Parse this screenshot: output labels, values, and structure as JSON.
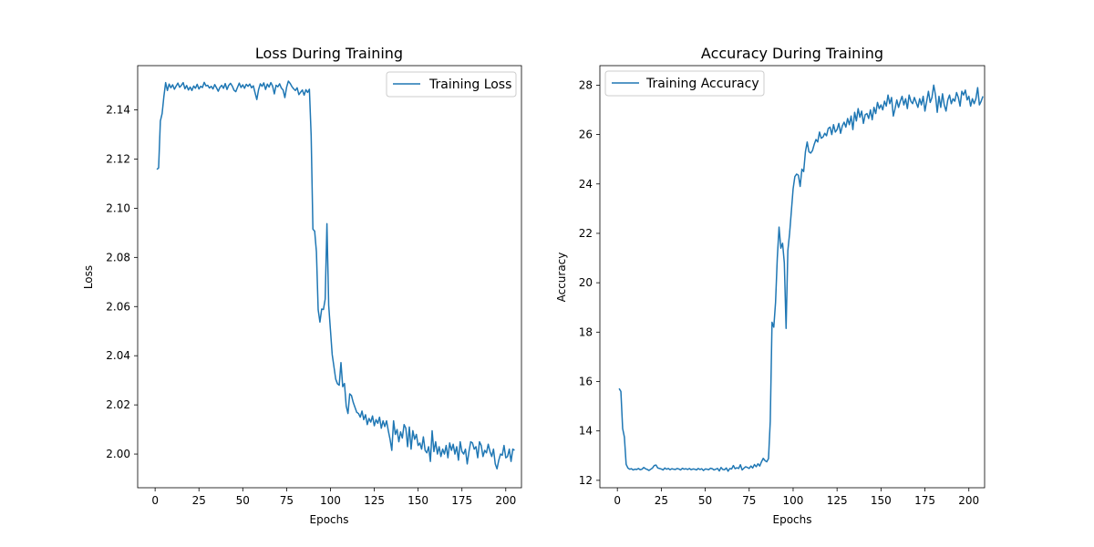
{
  "chart_data": [
    {
      "type": "line",
      "title": "Loss During Training",
      "xlabel": "Epochs",
      "ylabel": "Loss",
      "xlim": [
        -9.95,
        208.95
      ],
      "ylim": [
        1.9863,
        2.158
      ],
      "xticks": [
        0,
        25,
        50,
        75,
        100,
        125,
        150,
        175,
        200
      ],
      "yticks": [
        2.0,
        2.02,
        2.04,
        2.06,
        2.08,
        2.1,
        2.12,
        2.14
      ],
      "xtick_labels": [
        "0",
        "25",
        "50",
        "75",
        "100",
        "125",
        "150",
        "175",
        "200"
      ],
      "ytick_labels": [
        "2.00",
        "2.02",
        "2.04",
        "2.06",
        "2.08",
        "2.10",
        "2.12",
        "2.14"
      ],
      "legend_position": "upper-right",
      "color": "#1f77b4",
      "series": [
        {
          "name": "Training Loss",
          "x_start": 1,
          "values": [
            2.1158,
            2.1164,
            2.1355,
            2.1385,
            2.1454,
            2.1511,
            2.1479,
            2.1505,
            2.149,
            2.1502,
            2.1484,
            2.1497,
            2.1509,
            2.1492,
            2.15,
            2.1511,
            2.1486,
            2.1499,
            2.1481,
            2.1493,
            2.1479,
            2.1497,
            2.1488,
            2.1504,
            2.1485,
            2.1496,
            2.1491,
            2.1512,
            2.1498,
            2.15,
            2.1489,
            2.1496,
            2.1485,
            2.1503,
            2.149,
            2.1476,
            2.1492,
            2.15,
            2.1488,
            2.1507,
            2.1483,
            2.15,
            2.1508,
            2.1497,
            2.148,
            2.1474,
            2.1492,
            2.1509,
            2.1491,
            2.1502,
            2.1488,
            2.1504,
            2.1496,
            2.1505,
            2.149,
            2.1498,
            2.147,
            2.1442,
            2.1482,
            2.1506,
            2.1496,
            2.151,
            2.1483,
            2.1505,
            2.1493,
            2.1511,
            2.1497,
            2.1465,
            2.15,
            2.1494,
            2.1506,
            2.1489,
            2.1481,
            2.145,
            2.1492,
            2.1517,
            2.1508,
            2.1495,
            2.1486,
            2.1479,
            2.149,
            2.1462,
            2.1472,
            2.1481,
            2.146,
            2.1482,
            2.1471,
            2.1484,
            2.1295,
            2.0915,
            2.0907,
            2.0823,
            2.0587,
            2.0537,
            2.059,
            2.0588,
            2.063,
            2.0937,
            2.0605,
            2.0505,
            2.0405,
            2.0355,
            2.0305,
            2.0286,
            2.028,
            2.0372,
            2.0274,
            2.0287,
            2.0195,
            2.0165,
            2.0245,
            2.0238,
            2.021,
            2.019,
            2.017,
            2.0165,
            2.015,
            2.0175,
            2.014,
            2.016,
            2.012,
            2.0145,
            2.013,
            2.0155,
            2.0115,
            2.014,
            2.0125,
            2.015,
            2.0105,
            2.0135,
            2.0112,
            2.0135,
            2.0095,
            2.006,
            2.0015,
            2.0135,
            2.008,
            2.01,
            2.005,
            2.009,
            2.0065,
            2.012,
            2.0105,
            2.003,
            2.011,
            2.002,
            2.0095,
            2.006,
            2.008,
            2.0035,
            2.0045,
            2.002,
            2.007,
            2.0015,
            2.0005,
            2.003,
            1.997,
            2.0095,
            2.001,
            2.005,
            2.0,
            2.003,
            1.999,
            2.002,
            2.0,
            2.0035,
            1.9985,
            2.0045,
            2.0015,
            2.004,
            2.0,
            2.003,
            1.9975,
            2.005,
            2.001,
            2.0,
            2.002,
            1.996,
            2.001,
            2.005,
            2.0045,
            2.002,
            2.003,
            1.9985,
            2.005,
            2.0035,
            1.999,
            2.0015,
            2.0005,
            2.004,
            2.001,
            1.999,
            2.002,
            1.996,
            1.994,
            1.9975,
            2.0,
            1.9995,
            2.0035,
            1.9985,
            1.999,
            2.002,
            1.997,
            2.002,
            2.0015
          ]
        }
      ]
    },
    {
      "type": "line",
      "title": "Accuracy During Training",
      "xlabel": "Epochs",
      "ylabel": "Accuracy",
      "xlim": [
        -9.95,
        208.95
      ],
      "ylim": [
        11.7,
        28.79
      ],
      "xticks": [
        0,
        25,
        50,
        75,
        100,
        125,
        150,
        175,
        200
      ],
      "yticks": [
        12,
        14,
        16,
        18,
        20,
        22,
        24,
        26,
        28
      ],
      "xtick_labels": [
        "0",
        "25",
        "50",
        "75",
        "100",
        "125",
        "150",
        "175",
        "200"
      ],
      "ytick_labels": [
        "12",
        "14",
        "16",
        "18",
        "20",
        "22",
        "24",
        "26",
        "28"
      ],
      "legend_position": "upper-left",
      "color": "#1f77b4",
      "series": [
        {
          "name": "Training Accuracy",
          "x_start": 1,
          "values": [
            15.72,
            15.6,
            14.1,
            13.75,
            12.65,
            12.5,
            12.45,
            12.47,
            12.42,
            12.45,
            12.44,
            12.48,
            12.43,
            12.45,
            12.52,
            12.47,
            12.44,
            12.4,
            12.45,
            12.5,
            12.6,
            12.62,
            12.5,
            12.48,
            12.46,
            12.42,
            12.5,
            12.45,
            12.48,
            12.43,
            12.47,
            12.45,
            12.44,
            12.48,
            12.46,
            12.42,
            12.49,
            12.45,
            12.47,
            12.44,
            12.48,
            12.43,
            12.46,
            12.45,
            12.42,
            12.48,
            12.44,
            12.47,
            12.4,
            12.46,
            12.45,
            12.43,
            12.49,
            12.47,
            12.42,
            12.45,
            12.48,
            12.38,
            12.52,
            12.44,
            12.43,
            12.5,
            12.37,
            12.48,
            12.46,
            12.6,
            12.47,
            12.51,
            12.48,
            12.63,
            12.42,
            12.49,
            12.55,
            12.52,
            12.48,
            12.58,
            12.5,
            12.64,
            12.55,
            12.67,
            12.58,
            12.75,
            12.89,
            12.8,
            12.75,
            12.88,
            14.4,
            18.4,
            18.2,
            19.2,
            21.0,
            22.25,
            21.4,
            21.6,
            20.8,
            18.15,
            21.3,
            22.0,
            22.9,
            23.8,
            24.3,
            24.4,
            24.35,
            23.9,
            24.6,
            24.5,
            25.3,
            25.7,
            25.3,
            25.25,
            25.35,
            25.6,
            25.8,
            25.7,
            26.1,
            25.85,
            25.9,
            26.05,
            25.95,
            26.25,
            26.3,
            26.0,
            26.4,
            26.1,
            26.2,
            26.45,
            26.05,
            26.35,
            26.5,
            26.3,
            26.65,
            26.4,
            26.75,
            26.2,
            26.9,
            26.55,
            27.05,
            26.7,
            26.95,
            26.45,
            26.8,
            26.85,
            26.65,
            27.0,
            26.6,
            27.1,
            26.85,
            27.3,
            27.05,
            27.2,
            27.0,
            27.35,
            27.15,
            27.6,
            27.25,
            27.5,
            26.75,
            27.05,
            27.4,
            27.1,
            27.35,
            27.55,
            27.2,
            27.45,
            27.05,
            27.6,
            27.35,
            27.25,
            27.5,
            27.3,
            27.1,
            27.45,
            27.2,
            27.55,
            26.95,
            27.35,
            27.75,
            27.3,
            27.5,
            28.0,
            27.6,
            26.9,
            27.55,
            27.1,
            27.65,
            27.2,
            26.95,
            27.4,
            27.6,
            27.25,
            27.45,
            27.35,
            27.7,
            27.5,
            27.15,
            27.75,
            27.6,
            27.8,
            27.4,
            27.55,
            27.15,
            27.45,
            27.25,
            27.45,
            27.9,
            27.2,
            27.35,
            27.55
          ]
        }
      ]
    }
  ]
}
